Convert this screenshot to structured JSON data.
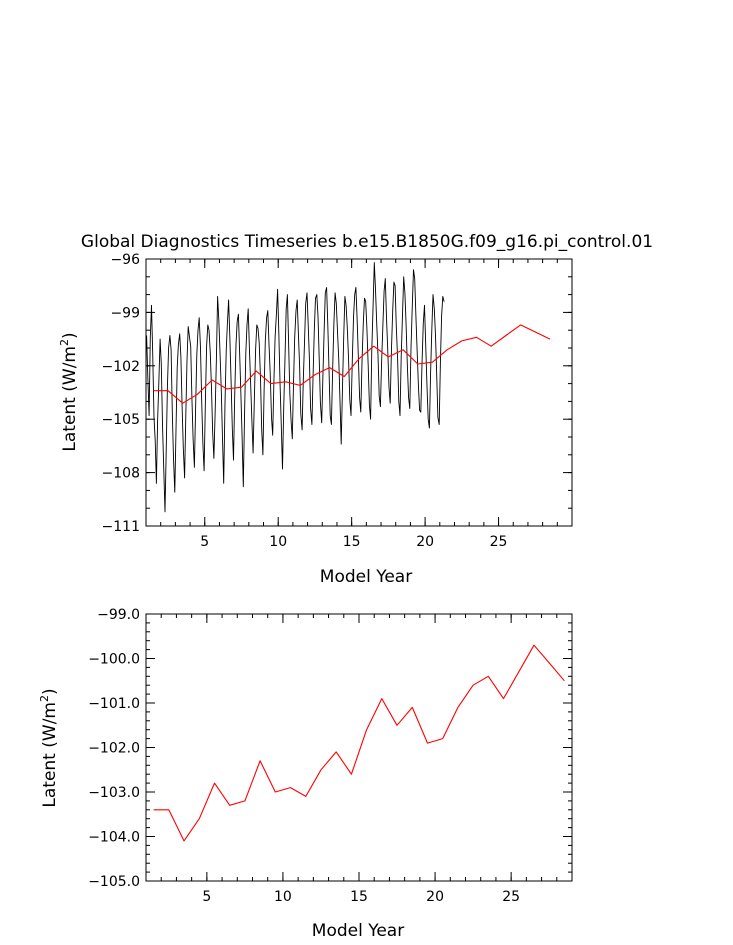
{
  "chart_data": [
    {
      "type": "line",
      "title": "Global Diagnostics Timeseries b.e15.B1850G.f09_g16.pi_control.01",
      "xlabel": "Model Year",
      "ylabel_main": "Latent (W/m",
      "ylabel_sup": "2",
      "ylabel_close": ")",
      "xlim": [
        1,
        30
      ],
      "ylim": [
        -111,
        -96
      ],
      "xticks": [
        5,
        10,
        15,
        20,
        25
      ],
      "xtick_labels": [
        "5",
        "10",
        "15",
        "20",
        "25"
      ],
      "yticks": [
        -96,
        -99,
        -102,
        -105,
        -108,
        -111
      ],
      "ytick_labels": [
        "−96",
        "−99",
        "−102",
        "−105",
        "−108",
        "−111"
      ],
      "colors": {
        "monthly": "#000000",
        "annual": "#ff0000"
      },
      "series": [
        {
          "style": "monthly",
          "x_start": 1.0417,
          "x_step": 0.08333,
          "values": [
            -100.3,
            -102.6,
            -104.8,
            -100.4,
            -98.6,
            -101.3,
            -104.9,
            -106.2,
            -108.6,
            -105.1,
            -102.8,
            -100.5,
            -101.9,
            -105.3,
            -107.7,
            -110.2,
            -106.8,
            -103.2,
            -101.0,
            -100.3,
            -101.1,
            -104.6,
            -107.2,
            -109.1,
            -105.6,
            -102.1,
            -100.8,
            -100.2,
            -101.5,
            -104.3,
            -106.6,
            -108.3,
            -104.8,
            -101.7,
            -99.8,
            -100.4,
            -100.9,
            -103.8,
            -106.1,
            -107.7,
            -104.4,
            -101.4,
            -100.0,
            -99.3,
            -101.0,
            -104.0,
            -106.4,
            -107.9,
            -104.0,
            -100.9,
            -99.7,
            -100.0,
            -101.3,
            -103.3,
            -105.8,
            -107.2,
            -104.5,
            -101.6,
            -98.1,
            -99.4,
            -101.4,
            -103.4,
            -106.1,
            -108.6,
            -104.1,
            -101.2,
            -99.6,
            -98.3,
            -100.5,
            -102.9,
            -105.5,
            -107.3,
            -103.7,
            -100.8,
            -99.5,
            -99.1,
            -101.2,
            -103.6,
            -106.0,
            -108.8,
            -104.9,
            -101.3,
            -99.7,
            -98.8,
            -101.0,
            -103.1,
            -105.1,
            -106.9,
            -104.0,
            -101.1,
            -99.7,
            -99.9,
            -100.7,
            -102.7,
            -105.6,
            -107.0,
            -103.4,
            -100.6,
            -99.3,
            -98.9,
            -100.8,
            -102.4,
            -104.9,
            -105.9,
            -102.9,
            -100.4,
            -99.1,
            -97.7,
            -100.1,
            -102.9,
            -105.4,
            -107.8,
            -104.4,
            -101.8,
            -98.8,
            -98.0,
            -100.7,
            -103.5,
            -105.1,
            -106.1,
            -103.0,
            -100.4,
            -98.9,
            -98.3,
            -100.2,
            -102.0,
            -104.7,
            -105.6,
            -102.8,
            -100.7,
            -98.5,
            -97.9,
            -99.7,
            -101.6,
            -104.4,
            -105.3,
            -102.5,
            -100.0,
            -98.2,
            -98.0,
            -99.2,
            -101.6,
            -104.1,
            -105.2,
            -102.6,
            -100.1,
            -97.9,
            -97.6,
            -99.7,
            -102.2,
            -104.8,
            -105.3,
            -102.1,
            -99.6,
            -97.9,
            -98.5,
            -100.2,
            -101.7,
            -104.0,
            -106.4,
            -103.2,
            -100.4,
            -98.1,
            -98.6,
            -100.0,
            -101.7,
            -103.9,
            -104.8,
            -101.7,
            -99.3,
            -98.0,
            -97.6,
            -99.5,
            -101.6,
            -103.8,
            -104.6,
            -101.6,
            -99.6,
            -98.2,
            -98.4,
            -99.9,
            -102.0,
            -104.2,
            -105.0,
            -101.1,
            -98.6,
            -96.2,
            -97.7,
            -99.6,
            -101.4,
            -103.7,
            -104.3,
            -101.8,
            -99.7,
            -97.8,
            -97.1,
            -99.3,
            -101.2,
            -103.2,
            -104.1,
            -101.2,
            -98.9,
            -97.3,
            -97.5,
            -99.8,
            -101.6,
            -104.0,
            -104.8,
            -101.5,
            -99.3,
            -97.0,
            -97.9,
            -99.7,
            -101.9,
            -103.8,
            -104.4,
            -101.0,
            -98.8,
            -96.6,
            -97.1,
            -99.2,
            -101.1,
            -103.1,
            -104.5,
            -104.6,
            -101.9,
            -99.6,
            -98.6,
            -100.8,
            -103.0,
            -105.0,
            -105.5,
            -102.4,
            -100.0,
            -98.0,
            -98.8,
            -100.3,
            -102.5,
            -104.9,
            -105.3,
            -101.8,
            -99.2,
            -98.1,
            -98.4
          ]
        },
        {
          "style": "annual",
          "x": [
            1.5,
            2.5,
            3.5,
            4.5,
            5.5,
            6.5,
            7.5,
            8.5,
            9.5,
            10.5,
            11.5,
            12.5,
            13.5,
            14.5,
            15.5,
            16.5,
            17.5,
            18.5,
            19.5,
            20.5,
            21.5,
            22.5,
            23.5,
            24.5,
            25.5,
            26.5,
            27.5,
            28.5
          ],
          "values": [
            -103.4,
            -103.4,
            -104.1,
            -103.6,
            -102.8,
            -103.3,
            -103.2,
            -102.3,
            -103.0,
            -102.9,
            -103.1,
            -102.5,
            -102.1,
            -102.6,
            -101.6,
            -100.9,
            -101.5,
            -101.1,
            -101.9,
            -101.8,
            -101.1,
            -100.6,
            -100.4,
            -100.9,
            -100.3,
            -99.7,
            -100.1,
            -100.5
          ]
        }
      ]
    },
    {
      "type": "line",
      "xlabel": "Model Year",
      "ylabel_main": "Latent (W/m",
      "ylabel_sup": "2",
      "ylabel_close": ")",
      "xlim": [
        1,
        29
      ],
      "ylim": [
        -105,
        -99
      ],
      "xticks": [
        5,
        10,
        15,
        20,
        25
      ],
      "xtick_labels": [
        "5",
        "10",
        "15",
        "20",
        "25"
      ],
      "yticks": [
        -99,
        -100,
        -101,
        -102,
        -103,
        -104,
        -105
      ],
      "ytick_labels": [
        "−99.0",
        "−100.0",
        "−101.0",
        "−102.0",
        "−103.0",
        "−104.0",
        "−105.0"
      ],
      "colors": {
        "annual": "#ff0000"
      },
      "series": [
        {
          "style": "annual",
          "x": [
            1.5,
            2.5,
            3.5,
            4.5,
            5.5,
            6.5,
            7.5,
            8.5,
            9.5,
            10.5,
            11.5,
            12.5,
            13.5,
            14.5,
            15.5,
            16.5,
            17.5,
            18.5,
            19.5,
            20.5,
            21.5,
            22.5,
            23.5,
            24.5,
            25.5,
            26.5,
            27.5,
            28.5
          ],
          "values": [
            -103.4,
            -103.4,
            -104.1,
            -103.6,
            -102.8,
            -103.3,
            -103.2,
            -102.3,
            -103.0,
            -102.9,
            -103.1,
            -102.5,
            -102.1,
            -102.6,
            -101.6,
            -100.9,
            -101.5,
            -101.1,
            -101.9,
            -101.8,
            -101.1,
            -100.6,
            -100.4,
            -100.9,
            -100.3,
            -99.7,
            -100.1,
            -100.5
          ]
        }
      ]
    }
  ]
}
